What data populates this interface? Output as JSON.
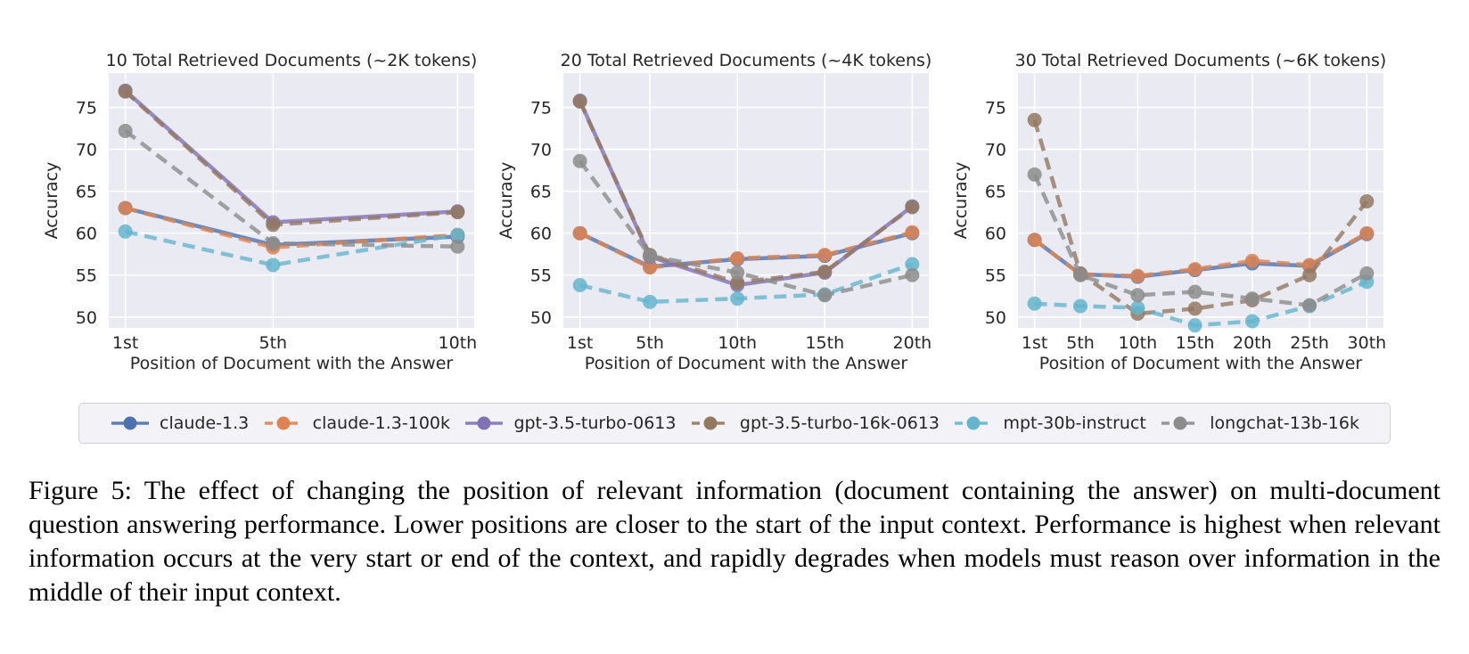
{
  "caption": {
    "text": "Figure 5: The effect of changing the position of relevant information (document containing the answer) on multi-document question answering performance. Lower positions are closer to the start of the input context. Performance is highest when relevant information occurs at the very start or end of the context, and rapidly degrades when models must reason over information in the middle of their input context."
  },
  "legend": {
    "items": [
      {
        "label": "claude-1.3",
        "color": "#4c72b0",
        "dashed": false
      },
      {
        "label": "claude-1.3-100k",
        "color": "#dd8452",
        "dashed": true
      },
      {
        "label": "gpt-3.5-turbo-0613",
        "color": "#8172b3",
        "dashed": false
      },
      {
        "label": "gpt-3.5-turbo-16k-0613",
        "color": "#937860",
        "dashed": true
      },
      {
        "label": "mpt-30b-instruct",
        "color": "#64b5cd",
        "dashed": true
      },
      {
        "label": "longchat-13b-16k",
        "color": "#8c8c8c",
        "dashed": true
      }
    ]
  },
  "style": {
    "plot_bg": "#eaeaf2",
    "grid_color": "#ffffff",
    "text_color": "#262626"
  },
  "chart_data": [
    {
      "type": "line",
      "title": "10 Total Retrieved Documents (~2K tokens)",
      "xlabel": "Position of Document with the Answer",
      "ylabel": "Accuracy",
      "x_tick_labels": [
        "1st",
        "5th",
        "10th"
      ],
      "x_positions": [
        1,
        5,
        10
      ],
      "y_ticks": [
        50,
        55,
        60,
        65,
        70,
        75
      ],
      "ylim": [
        48.7,
        79.1
      ],
      "series": [
        {
          "name": "claude-1.3",
          "color": "#4c72b0",
          "dashed": false,
          "values": [
            63.0,
            58.6,
            59.6
          ]
        },
        {
          "name": "claude-1.3-100k",
          "color": "#dd8452",
          "dashed": true,
          "values": [
            63.0,
            58.3,
            59.8
          ]
        },
        {
          "name": "gpt-3.5-turbo-0613",
          "color": "#8172b3",
          "dashed": false,
          "values": [
            77.0,
            61.3,
            62.6
          ]
        },
        {
          "name": "gpt-3.5-turbo-16k-0613",
          "color": "#937860",
          "dashed": true,
          "values": [
            76.9,
            61.0,
            62.5
          ]
        },
        {
          "name": "mpt-30b-instruct",
          "color": "#64b5cd",
          "dashed": true,
          "values": [
            60.2,
            56.2,
            59.8
          ]
        },
        {
          "name": "longchat-13b-16k",
          "color": "#8c8c8c",
          "dashed": true,
          "values": [
            72.2,
            58.8,
            58.4
          ]
        }
      ]
    },
    {
      "type": "line",
      "title": "20 Total Retrieved Documents (~4K tokens)",
      "xlabel": "Position of Document with the Answer",
      "ylabel": "Accuracy",
      "x_tick_labels": [
        "1st",
        "5th",
        "10th",
        "15th",
        "20th"
      ],
      "x_positions": [
        1,
        5,
        10,
        15,
        20
      ],
      "y_ticks": [
        50,
        55,
        60,
        65,
        70,
        75
      ],
      "ylim": [
        48.7,
        79.1
      ],
      "series": [
        {
          "name": "claude-1.3",
          "color": "#4c72b0",
          "dashed": false,
          "values": [
            60.0,
            56.0,
            56.9,
            57.3,
            60.0
          ]
        },
        {
          "name": "claude-1.3-100k",
          "color": "#dd8452",
          "dashed": true,
          "values": [
            60.0,
            55.9,
            57.0,
            57.4,
            60.1
          ]
        },
        {
          "name": "gpt-3.5-turbo-0613",
          "color": "#8172b3",
          "dashed": false,
          "values": [
            75.8,
            57.2,
            53.8,
            55.3,
            63.2
          ]
        },
        {
          "name": "gpt-3.5-turbo-16k-0613",
          "color": "#937860",
          "dashed": true,
          "values": [
            75.7,
            57.4,
            54.1,
            55.4,
            63.1
          ]
        },
        {
          "name": "mpt-30b-instruct",
          "color": "#64b5cd",
          "dashed": true,
          "values": [
            53.8,
            51.8,
            52.2,
            52.7,
            56.3
          ]
        },
        {
          "name": "longchat-13b-16k",
          "color": "#8c8c8c",
          "dashed": true,
          "values": [
            68.6,
            57.3,
            55.3,
            52.6,
            55.0
          ]
        }
      ]
    },
    {
      "type": "line",
      "title": "30 Total Retrieved Documents (~6K tokens)",
      "xlabel": "Position of Document with the Answer",
      "ylabel": "Accuracy",
      "x_tick_labels": [
        "1st",
        "5th",
        "10th",
        "15th",
        "20th",
        "25th",
        "30th"
      ],
      "x_positions": [
        1,
        5,
        10,
        15,
        20,
        25,
        30
      ],
      "y_ticks": [
        50,
        55,
        60,
        65,
        70,
        75
      ],
      "ylim": [
        48.7,
        79.1
      ],
      "series": [
        {
          "name": "claude-1.3",
          "color": "#4c72b0",
          "dashed": false,
          "values": [
            59.2,
            55.1,
            54.8,
            55.6,
            56.4,
            56.1,
            59.9
          ]
        },
        {
          "name": "claude-1.3-100k",
          "color": "#dd8452",
          "dashed": true,
          "values": [
            59.2,
            55.1,
            54.9,
            55.7,
            56.7,
            56.2,
            60.0
          ]
        },
        {
          "name": "gpt-3.5-turbo-16k-0613",
          "color": "#937860",
          "dashed": true,
          "values": [
            73.5,
            55.2,
            50.4,
            51.0,
            52.0,
            55.0,
            63.8
          ]
        },
        {
          "name": "mpt-30b-instruct",
          "color": "#64b5cd",
          "dashed": true,
          "values": [
            51.6,
            51.3,
            51.1,
            49.0,
            49.5,
            51.3,
            54.2
          ]
        },
        {
          "name": "longchat-13b-16k",
          "color": "#8c8c8c",
          "dashed": true,
          "values": [
            67.0,
            55.0,
            52.6,
            53.0,
            52.2,
            51.4,
            55.2
          ]
        }
      ]
    }
  ]
}
